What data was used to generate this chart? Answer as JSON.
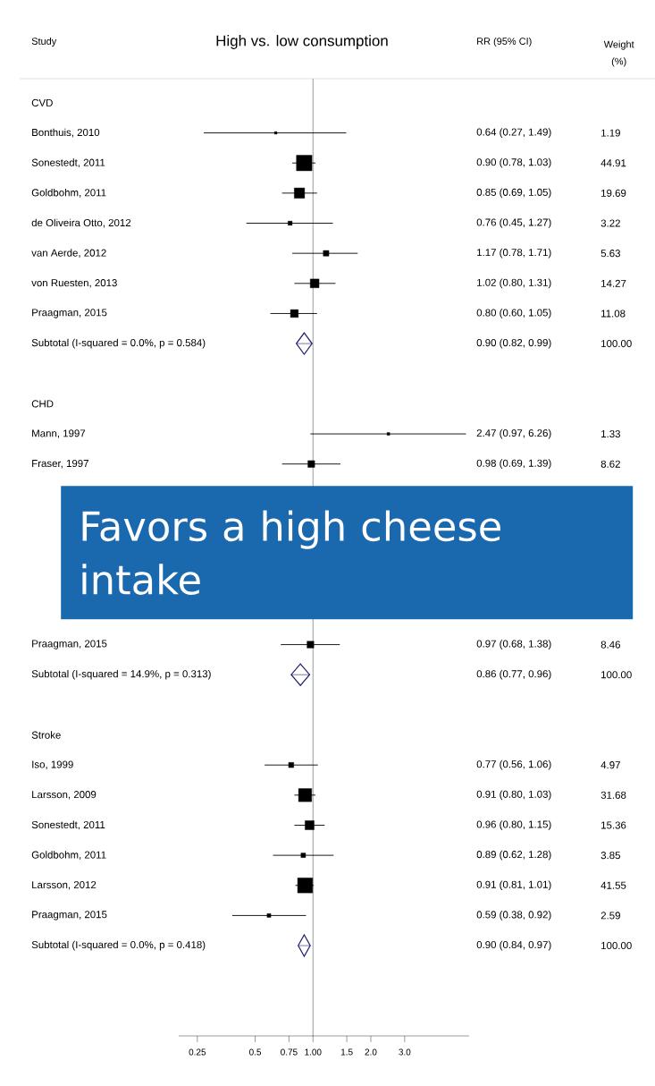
{
  "chart_data": {
    "type": "scatter",
    "orientation": "horizontal",
    "title": "High vs. low consumption",
    "annotations": [
      "Study",
      "RR (95% CI)",
      "Weight (%)",
      "Favors a high cheese intake",
      "1.19",
      "44.91",
      "19.69",
      "3.22",
      "5.63",
      "14.27",
      "11.08",
      "100.00",
      "1.33",
      "8.62",
      "8.46",
      "100.00",
      "4.97",
      "31.68",
      "15.36",
      "3.85",
      "41.55",
      "2.59",
      "100.00",
      "0.90 (0.82, 0.99)",
      "0.86 (0.77, 0.96)",
      "0.90 (0.84, 0.97)"
    ],
    "categories": [
      "CVD",
      "Bonthuis, 2010",
      "Sonestedt, 2011",
      "Goldbohm, 2011",
      "de Oliveira Otto, 2012",
      "van Aerde, 2012",
      "von Ruesten, 2013",
      "Praagman, 2015",
      "Subtotal  (I-squared = 0.0%, p = 0.584)",
      null,
      "CHD",
      "Mann, 1997",
      "Fraser, 1997",
      null,
      null,
      null,
      null,
      null,
      "Praagman, 2015",
      "Subtotal  (I-squared = 14.9%, p = 0.313)",
      null,
      "Stroke",
      "Iso, 1999",
      "Larsson, 2009",
      "Sonestedt, 2011",
      "Goldbohm, 2011",
      "Larsson, 2012",
      "Praagman, 2015",
      "Subtotal  (I-squared = 0.0%, p = 0.418)",
      null
    ],
    "series": [
      {
        "color": "#000000",
        "marker": "square",
        "values": [
          null,
          0.64,
          0.9,
          0.85,
          0.76,
          1.17,
          1.02,
          0.8,
          null,
          null,
          null,
          2.47,
          0.98,
          null,
          null,
          null,
          null,
          null,
          0.97,
          null,
          null,
          null,
          0.77,
          0.91,
          0.96,
          0.89,
          0.91,
          0.59,
          null,
          null
        ],
        "errors": [
          null,
          [
            0.27,
            1.49
          ],
          [
            0.78,
            1.03
          ],
          [
            0.69,
            1.05
          ],
          [
            0.45,
            1.27
          ],
          [
            0.78,
            1.71
          ],
          [
            0.8,
            1.31
          ],
          [
            0.6,
            1.05
          ],
          null,
          null,
          null,
          [
            0.97,
            6.26
          ],
          [
            0.69,
            1.39
          ],
          null,
          null,
          null,
          null,
          null,
          [
            0.68,
            1.38
          ],
          null,
          null,
          null,
          [
            0.56,
            1.06
          ],
          [
            0.8,
            1.03
          ],
          [
            0.8,
            1.15
          ],
          [
            0.62,
            1.28
          ],
          [
            0.81,
            1.01
          ],
          [
            0.38,
            0.92
          ],
          null,
          null
        ],
        "sizes": [
          null,
          0.026,
          1,
          0.44,
          0.072,
          0.13,
          0.32,
          0.25,
          null,
          null,
          null,
          0.03,
          0.19,
          null,
          null,
          null,
          null,
          null,
          0.19,
          null,
          null,
          null,
          0.11,
          0.71,
          0.34,
          0.086,
          0.93,
          0.058,
          null,
          null
        ],
        "value_labels": [
          null,
          "0.64 (0.27, 1.49)",
          "0.90 (0.78, 1.03)",
          "0.85 (0.69, 1.05)",
          "0.76 (0.45, 1.27)",
          "1.17 (0.78, 1.71)",
          "1.02 (0.80, 1.31)",
          "0.80 (0.60, 1.05)",
          null,
          null,
          null,
          "2.47 (0.97, 6.26)",
          "0.98 (0.69, 1.39)",
          null,
          null,
          null,
          null,
          null,
          "0.97 (0.68, 1.38)",
          null,
          null,
          null,
          "0.77 (0.56, 1.06)",
          "0.91 (0.80, 1.03)",
          "0.96 (0.80, 1.15)",
          "0.89 (0.62, 1.28)",
          "0.91 (0.81, 1.01)",
          "0.59 (0.38, 0.92)",
          null,
          null
        ]
      },
      {
        "color": "#1c1c6b",
        "marker": "diamond",
        "values": [
          null,
          null,
          null,
          null,
          null,
          null,
          null,
          null,
          0.9,
          null,
          null,
          null,
          null,
          null,
          null,
          null,
          null,
          null,
          null,
          0.86,
          null,
          null,
          null,
          null,
          null,
          null,
          null,
          null,
          0.9,
          null
        ],
        "errors": [
          null,
          null,
          null,
          null,
          null,
          null,
          null,
          null,
          [
            0.82,
            0.99
          ],
          null,
          null,
          null,
          null,
          null,
          null,
          null,
          null,
          null,
          null,
          [
            0.77,
            0.96
          ],
          null,
          null,
          null,
          null,
          null,
          null,
          null,
          null,
          [
            0.84,
            0.97
          ],
          null
        ]
      }
    ],
    "log": "x",
    "xlim": [
      0.2,
      6.5
    ],
    "xticks": [
      0.25,
      0.5,
      0.75,
      {
        "value": 1,
        "label": "1.00"
      },
      1.5,
      {
        "value": 2,
        "label": "2.0"
      },
      {
        "value": 3,
        "label": "3.0"
      }
    ],
    "ref_lines": [
      {
        "axis": "x",
        "value": 1
      }
    ]
  }
}
